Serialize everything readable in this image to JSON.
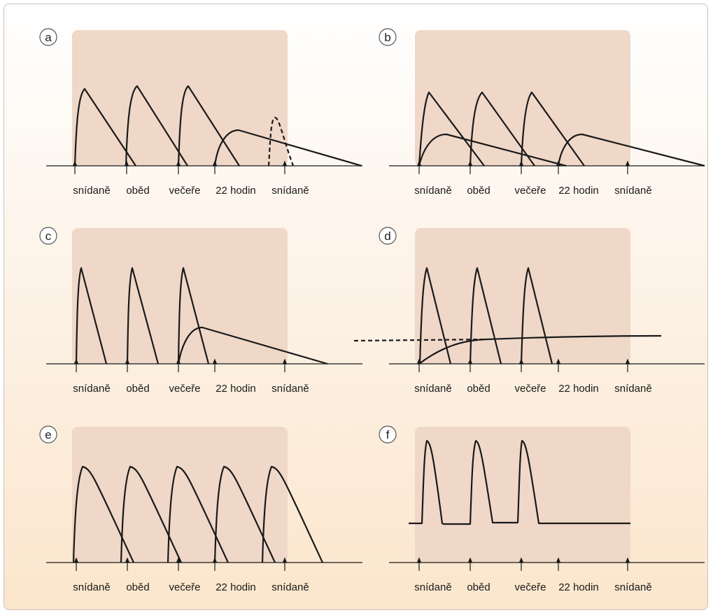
{
  "colors": {
    "shade": "#efd8c8",
    "curve": "#1a1a1a",
    "badge_border": "#555555"
  },
  "panels": [
    {
      "id": "a",
      "letter": "a",
      "labels": [
        "snídaně",
        "oběd",
        "večeře",
        "22 hodin",
        "snídaně"
      ]
    },
    {
      "id": "b",
      "letter": "b",
      "labels": [
        "snídaně",
        "oběd",
        "večeře",
        "22 hodin",
        "snídaně"
      ]
    },
    {
      "id": "c",
      "letter": "c",
      "labels": [
        "snídaně",
        "oběd",
        "večeře",
        "22 hodin",
        "snídaně"
      ]
    },
    {
      "id": "d",
      "letter": "d",
      "labels": [
        "snídaně",
        "oběd",
        "večeře",
        "22 hodin",
        "snídaně"
      ]
    },
    {
      "id": "e",
      "letter": "e",
      "labels": [
        "snídaně",
        "oběd",
        "večeře",
        "22 hodin",
        "snídaně"
      ]
    },
    {
      "id": "f",
      "letter": "f",
      "labels": [
        "snídaně",
        "oběd",
        "večeře",
        "22 hodin",
        "snídaně"
      ]
    }
  ]
}
